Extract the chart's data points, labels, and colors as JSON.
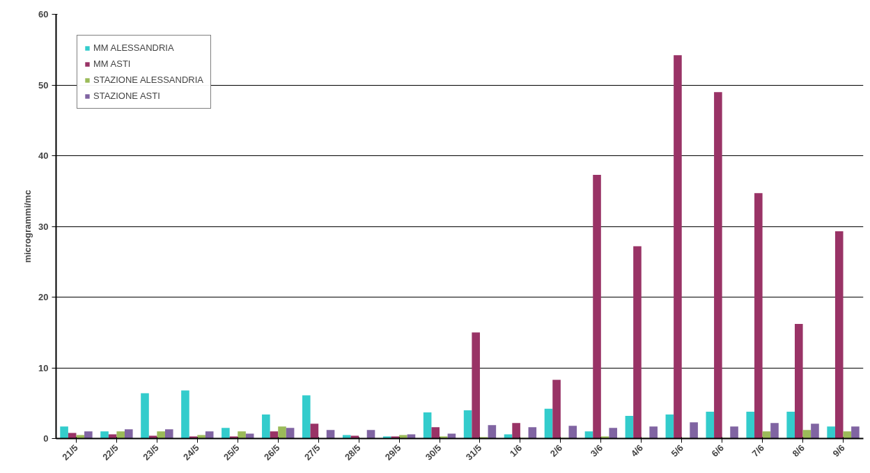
{
  "chart_data": {
    "type": "bar",
    "ylabel": "microgrammi/mc",
    "categories": [
      "21/5",
      "22/5",
      "23/5",
      "24/5",
      "25/5",
      "26/5",
      "27/5",
      "28/5",
      "29/5",
      "30/5",
      "31/5",
      "1/6",
      "2/6",
      "3/6",
      "4/6",
      "5/6",
      "6/6",
      "7/6",
      "8/6",
      "9/6"
    ],
    "series": [
      {
        "name": "MM ALESSANDRIA",
        "color": "#33cccc",
        "values": [
          1.7,
          1.0,
          6.4,
          6.8,
          1.5,
          3.4,
          6.1,
          0.5,
          0.3,
          3.7,
          4.0,
          0.6,
          4.2,
          1.0,
          3.2,
          3.4,
          3.8,
          3.8,
          3.8,
          1.7
        ]
      },
      {
        "name": "MM ASTI",
        "color": "#993366",
        "values": [
          0.8,
          0.6,
          0.4,
          0.3,
          0.3,
          1.0,
          2.1,
          0.4,
          0.3,
          1.6,
          15.0,
          2.2,
          8.3,
          37.3,
          27.2,
          54.2,
          49.0,
          34.7,
          16.2,
          29.3
        ]
      },
      {
        "name": "STAZIONE ALESSANDRIA",
        "color": "#9bbb59",
        "values": [
          0.5,
          1.0,
          1.0,
          0.5,
          1.0,
          1.7,
          0,
          0,
          0.5,
          0.3,
          0.2,
          0.1,
          0.1,
          0.3,
          0.1,
          0.1,
          0.1,
          1.0,
          1.2,
          1.0
        ]
      },
      {
        "name": "STAZIONE ASTI",
        "color": "#8064a2",
        "values": [
          1.0,
          1.3,
          1.3,
          1.0,
          0.7,
          1.5,
          1.2,
          1.2,
          0.6,
          0.7,
          1.9,
          1.6,
          1.8,
          1.5,
          1.7,
          2.3,
          1.7,
          2.2,
          2.1,
          1.7
        ]
      }
    ],
    "ylim": [
      0,
      60
    ],
    "yticks": [
      0,
      10,
      20,
      30,
      40,
      50,
      60
    ],
    "grid": "y",
    "legend": "top left"
  }
}
